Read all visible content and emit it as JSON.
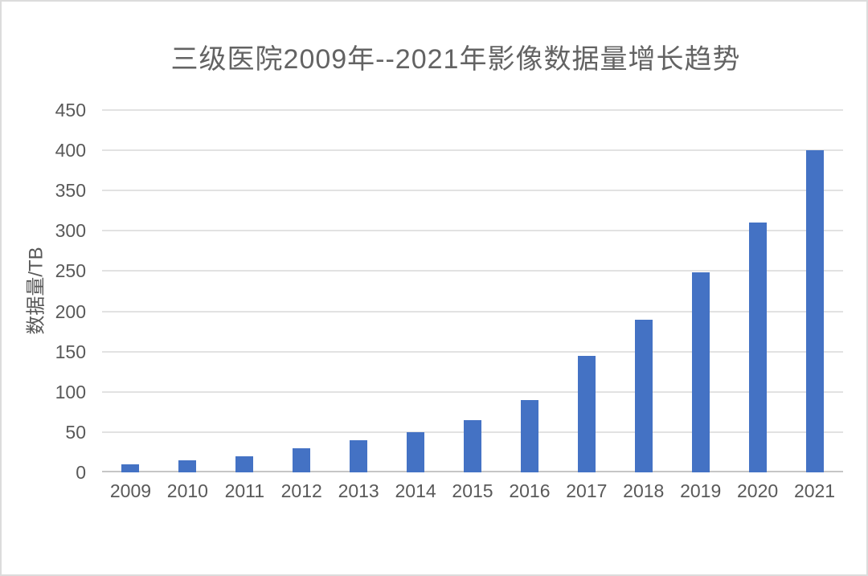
{
  "page": {
    "background_color": "#ffffff",
    "frame_border_color": "#dcdcdc"
  },
  "chart_data": {
    "type": "bar",
    "title": "三级医院2009年--2021年影像数据量增长趋势",
    "xlabel": "",
    "ylabel": "数据量/TB",
    "categories": [
      "2009",
      "2010",
      "2011",
      "2012",
      "2013",
      "2014",
      "2015",
      "2016",
      "2017",
      "2018",
      "2019",
      "2020",
      "2021"
    ],
    "values": [
      10,
      15,
      20,
      30,
      40,
      50,
      65,
      90,
      145,
      190,
      248,
      310,
      400
    ],
    "ylim": [
      0,
      450
    ],
    "yticks": [
      0,
      50,
      100,
      150,
      200,
      250,
      300,
      350,
      400,
      450
    ],
    "grid": true,
    "legend_position": "none",
    "bar_color": "#4472C4",
    "gridline_color": "#e2e2e2",
    "axis_line_color": "#c6c6c6",
    "text_color": "#595959",
    "title_color": "#636363"
  }
}
